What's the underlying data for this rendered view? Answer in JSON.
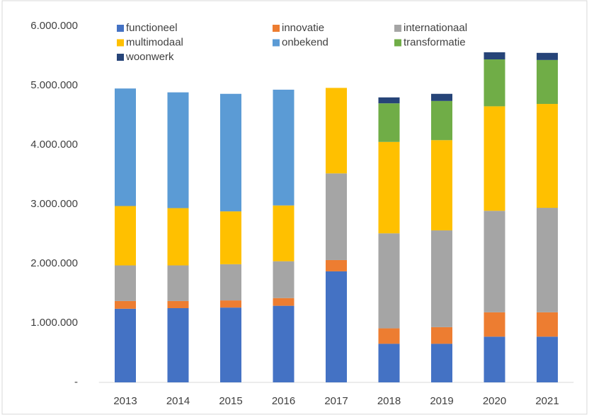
{
  "chart_data": {
    "type": "stacked_bar",
    "categories": [
      "2013",
      "2014",
      "2015",
      "2016",
      "2017",
      "2018",
      "2019",
      "2020",
      "2021"
    ],
    "series": [
      {
        "name": "functioneel",
        "color": "#4472c4",
        "values": [
          1240000,
          1250000,
          1260000,
          1290000,
          1870000,
          650000,
          650000,
          770000,
          770000
        ]
      },
      {
        "name": "innovatie",
        "color": "#ed7d31",
        "values": [
          130000,
          120000,
          120000,
          130000,
          190000,
          260000,
          280000,
          410000,
          410000
        ]
      },
      {
        "name": "internationaal",
        "color": "#a5a5a5",
        "values": [
          600000,
          600000,
          610000,
          620000,
          1460000,
          1600000,
          1630000,
          1710000,
          1760000
        ]
      },
      {
        "name": "multimodaal",
        "color": "#ffc000",
        "values": [
          1000000,
          965000,
          890000,
          940000,
          1440000,
          1540000,
          1520000,
          1760000,
          1750000
        ]
      },
      {
        "name": "onbekend",
        "color": "#5b9bd5",
        "values": [
          1980000,
          1950000,
          1980000,
          1950000,
          0,
          0,
          0,
          0,
          0
        ]
      },
      {
        "name": "transformatie",
        "color": "#70ad47",
        "values": [
          0,
          0,
          0,
          0,
          0,
          650000,
          660000,
          790000,
          740000
        ]
      },
      {
        "name": "woonwerk",
        "color": "#264478",
        "values": [
          0,
          0,
          0,
          0,
          0,
          100000,
          120000,
          120000,
          120000
        ]
      }
    ],
    "ylim": [
      0,
      6000000
    ],
    "yticks": [
      {
        "value": 0,
        "label": "-"
      },
      {
        "value": 1000000,
        "label": "1.000.000"
      },
      {
        "value": 2000000,
        "label": "2.000.000"
      },
      {
        "value": 3000000,
        "label": "3.000.000"
      },
      {
        "value": 4000000,
        "label": "4.000.000"
      },
      {
        "value": 5000000,
        "label": "5.000.000"
      },
      {
        "value": 6000000,
        "label": "6.000.000"
      }
    ],
    "legend": "top"
  }
}
